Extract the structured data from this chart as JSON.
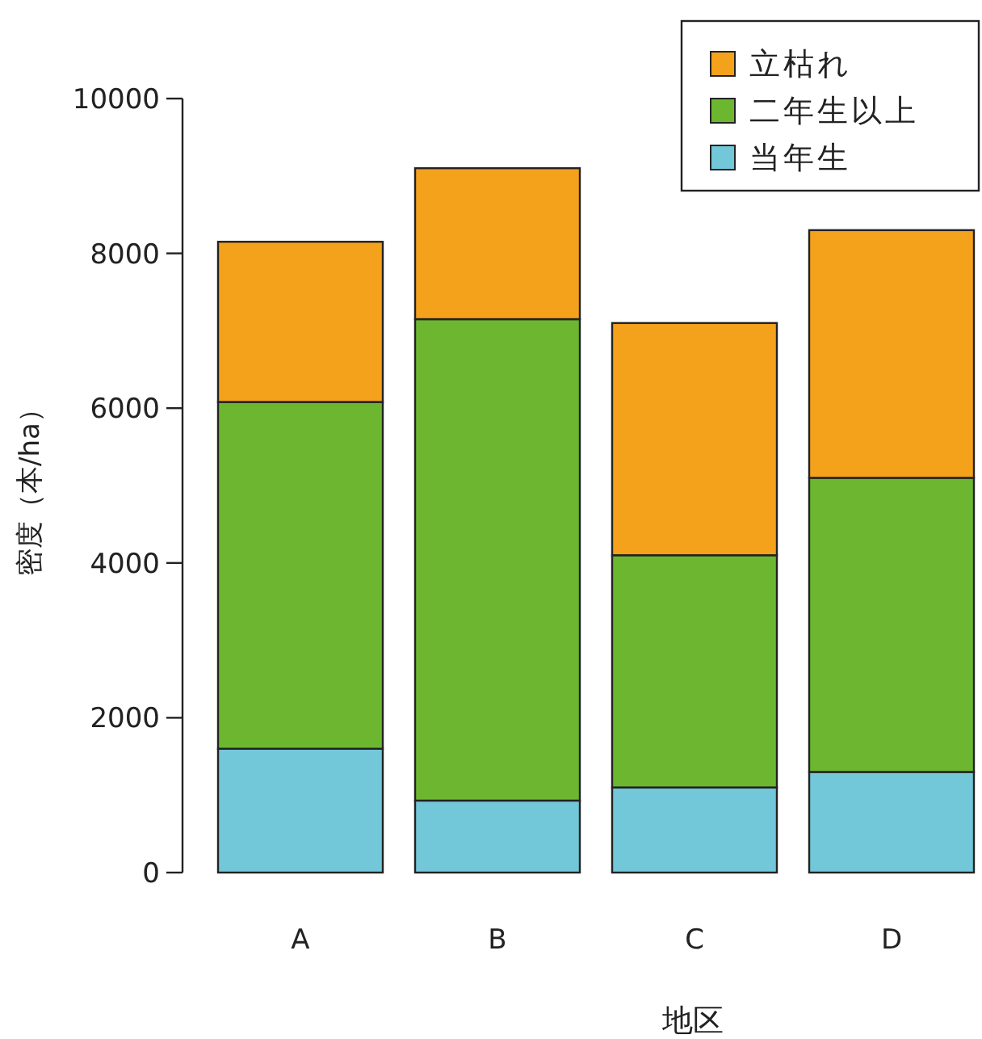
{
  "chart_data": {
    "type": "bar",
    "stacked": true,
    "xlabel": "地区",
    "ylabel": "密度（本/ha）",
    "categories": [
      "A",
      "B",
      "C",
      "D"
    ],
    "series": [
      {
        "name": "当年生",
        "color": "#72c7d8",
        "values": [
          1600,
          930,
          1100,
          1300
        ]
      },
      {
        "name": "二年生以上",
        "color": "#6cb72f",
        "values": [
          4480,
          6220,
          3000,
          3800
        ]
      },
      {
        "name": "立枯れ",
        "color": "#f4a11c",
        "values": [
          2070,
          1950,
          3000,
          3200
        ]
      }
    ],
    "ylim": [
      0,
      10000
    ],
    "yticks": [
      0,
      2000,
      4000,
      6000,
      8000,
      10000
    ],
    "grid": false,
    "legend": "top right"
  }
}
